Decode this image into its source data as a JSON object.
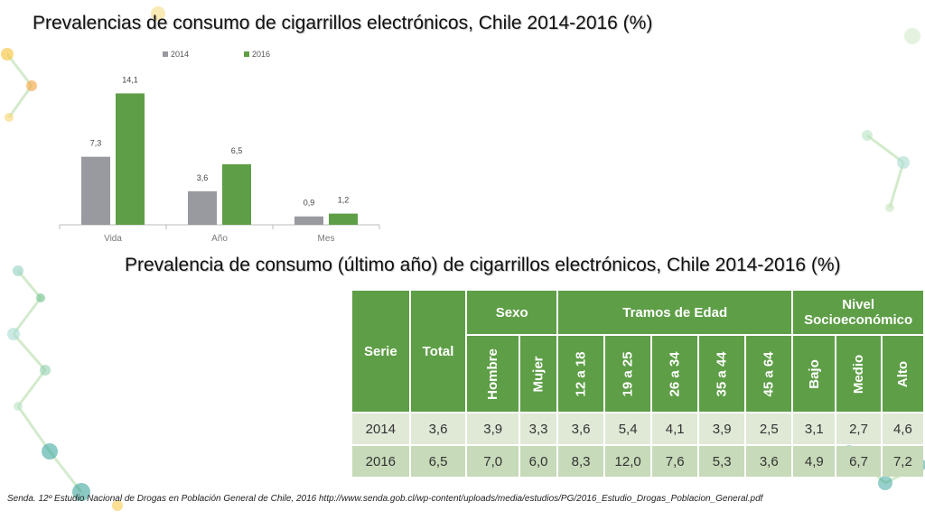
{
  "titles": {
    "chart": "Prevalencias de consumo de cigarrillos electrónicos, Chile 2014-2016 (%)",
    "table": "Prevalencia de consumo (último año) de cigarrillos electrónicos, Chile 2014-2016 (%)"
  },
  "chart_data": {
    "type": "bar",
    "categories": [
      "Vida",
      "Año",
      "Mes"
    ],
    "series": [
      {
        "name": "2014",
        "values": [
          7.3,
          3.6,
          0.9
        ],
        "labels": [
          "7,3",
          "3,6",
          "0,9"
        ],
        "color": "#999aa0"
      },
      {
        "name": "2016",
        "values": [
          14.1,
          6.5,
          1.2
        ],
        "labels": [
          "14,1",
          "6,5",
          "1,2"
        ],
        "color": "#5e9e47"
      }
    ],
    "legend": "top",
    "grid": false,
    "ylim": [
      0,
      15.5
    ]
  },
  "table": {
    "header": {
      "serie": "Serie",
      "total": "Total",
      "sexo": "Sexo",
      "edad": "Tramos de Edad",
      "nse": "Nivel Socioeconómico",
      "sub": [
        "Hombre",
        "Mujer",
        "12 a 18",
        "19 a 25",
        "26 a 34",
        "35 a 44",
        "45 a 64",
        "Bajo",
        "Medio",
        "Alto"
      ]
    },
    "rows": [
      {
        "serie": "2014",
        "values": [
          "3,6",
          "3,9",
          "3,3",
          "3,6",
          "5,4",
          "4,1",
          "3,9",
          "2,5",
          "3,1",
          "2,7",
          "4,6"
        ]
      },
      {
        "serie": "2016",
        "values": [
          "6,5",
          "7,0",
          "6,0",
          "8,3",
          "12,0",
          "7,6",
          "5,3",
          "3,6",
          "4,9",
          "6,7",
          "7,2"
        ]
      }
    ]
  },
  "source": "Senda. 12º Estudio Nacional de Drogas en Población General de Chile, 2016 http://www.senda.gob.cl/wp-content/uploads/media/estudios/PG/2016_Estudio_Drogas_Poblacion_General.pdf"
}
